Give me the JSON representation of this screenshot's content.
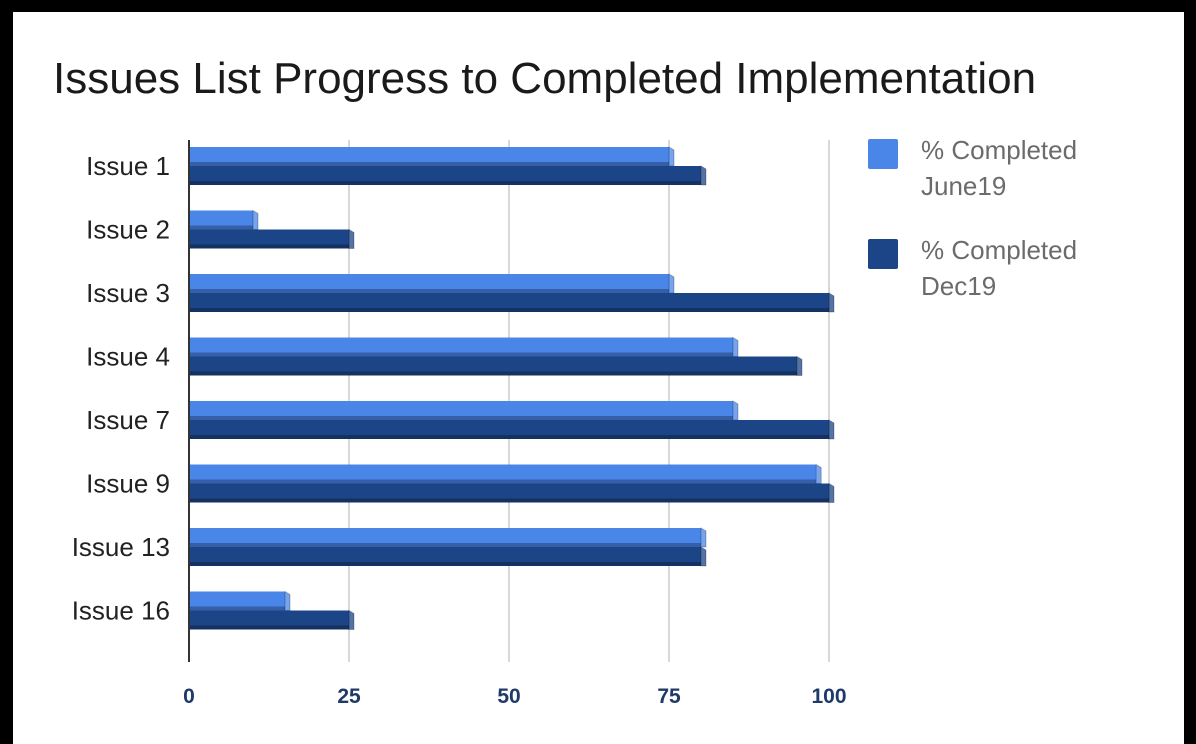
{
  "chart_data": {
    "type": "bar",
    "orientation": "horizontal",
    "title": "Issues List Progress to Completed Implementation",
    "categories": [
      "Issue 1",
      "Issue 2",
      "Issue 3",
      "Issue 4",
      "Issue 7",
      "Issue 9",
      "Issue 13",
      "Issue 16"
    ],
    "series": [
      {
        "name": "% Completed June19",
        "color": "#4a86e8",
        "values": [
          75,
          10,
          75,
          85,
          85,
          98,
          80,
          15
        ]
      },
      {
        "name": "% Completed Dec19",
        "color": "#1c4587",
        "values": [
          80,
          25,
          100,
          95,
          100,
          100,
          80,
          25
        ]
      }
    ],
    "xlim": [
      0,
      100
    ],
    "x_ticks": [
      "0",
      "25",
      "50",
      "75",
      "100"
    ],
    "grid": true,
    "legend_position": "right",
    "legend": [
      {
        "line1": "% Completed",
        "line2": "June19"
      },
      {
        "line1": "% Completed",
        "line2": "Dec19"
      }
    ]
  }
}
